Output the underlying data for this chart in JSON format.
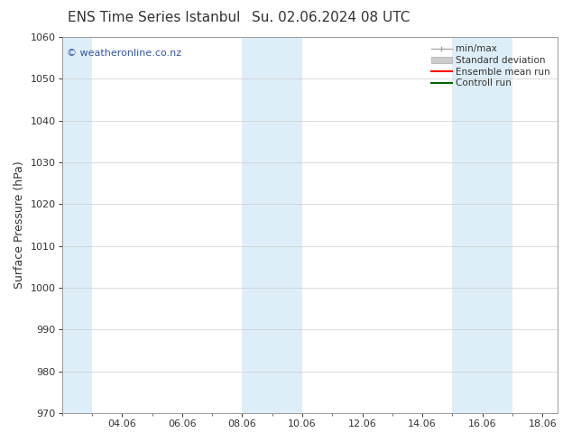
{
  "title": "ENS Time Series Istanbul",
  "title2": "Su. 02.06.2024 08 UTC",
  "ylabel": "Surface Pressure (hPa)",
  "ylim": [
    970,
    1060
  ],
  "yticks": [
    970,
    980,
    990,
    1000,
    1010,
    1020,
    1030,
    1040,
    1050,
    1060
  ],
  "xlim": [
    2.0,
    18.5
  ],
  "xtick_labels": [
    "04.06",
    "06.06",
    "08.06",
    "10.06",
    "12.06",
    "14.06",
    "16.06",
    "18.06"
  ],
  "xtick_positions": [
    4,
    6,
    8,
    10,
    12,
    14,
    16,
    18
  ],
  "bg_color": "#ffffff",
  "plot_bg_color": "#ffffff",
  "shaded_bands": [
    {
      "x_start": 2.0,
      "x_end": 3.0,
      "color": "#ddeef8"
    },
    {
      "x_start": 8.0,
      "x_end": 10.0,
      "color": "#ddeef8"
    },
    {
      "x_start": 15.0,
      "x_end": 17.0,
      "color": "#ddeef8"
    }
  ],
  "legend_items": [
    {
      "label": "min/max",
      "color": "#aaaaaa",
      "type": "minmax"
    },
    {
      "label": "Standard deviation",
      "color": "#cccccc",
      "type": "fill"
    },
    {
      "label": "Ensemble mean run",
      "color": "#ff0000",
      "type": "line"
    },
    {
      "label": "Controll run",
      "color": "#008000",
      "type": "line"
    }
  ],
  "watermark": "© weatheronline.co.nz",
  "watermark_color": "#3355aa",
  "font_color": "#333333",
  "grid_color": "#cccccc",
  "spine_color": "#999999",
  "title_fontsize": 11,
  "tick_fontsize": 8,
  "ylabel_fontsize": 9,
  "legend_fontsize": 7.5,
  "watermark_fontsize": 8
}
